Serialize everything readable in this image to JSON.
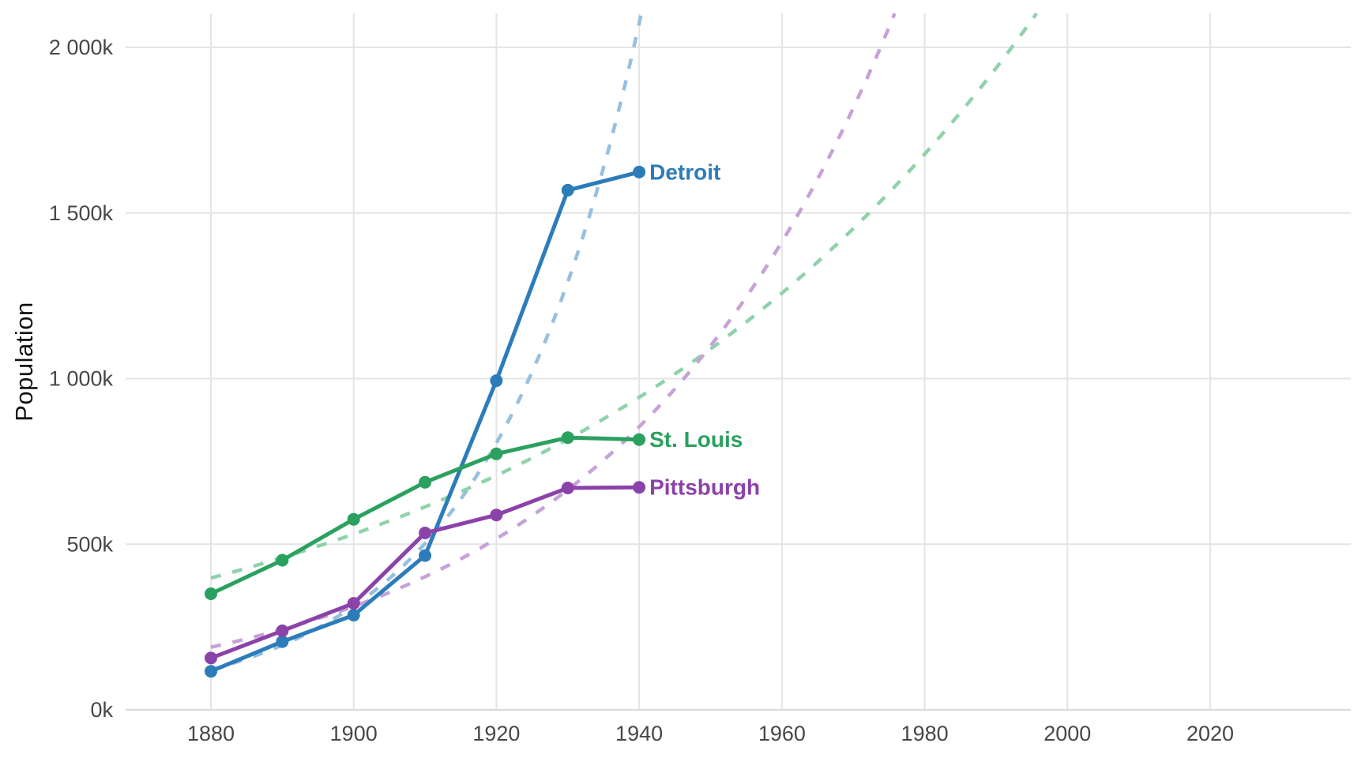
{
  "page": {
    "background": "#ffffff"
  },
  "axis": {
    "y_title": "Population"
  },
  "chart_data": {
    "type": "line",
    "title": "",
    "xlabel": "",
    "ylabel": "Population",
    "legend_position": "direct labels at the right end of each solid line",
    "grid": "major gridlines only, light gray on white; bottom axis line slightly darker",
    "x_range": [
      1868,
      2040
    ],
    "y_range_k": [
      0,
      2103
    ],
    "x_ticks": [
      {
        "value": 1880,
        "label": "1880"
      },
      {
        "value": 1900,
        "label": "1900"
      },
      {
        "value": 1920,
        "label": "1920"
      },
      {
        "value": 1940,
        "label": "1940"
      },
      {
        "value": 1960,
        "label": "1960"
      },
      {
        "value": 1980,
        "label": "1980"
      },
      {
        "value": 2000,
        "label": "2000"
      },
      {
        "value": 2020,
        "label": "2020"
      }
    ],
    "y_ticks": [
      {
        "value_k": 0,
        "label": "0k"
      },
      {
        "value_k": 500,
        "label": "500k"
      },
      {
        "value_k": 1000,
        "label": "1 000k"
      },
      {
        "value_k": 1500,
        "label": "1 500k"
      },
      {
        "value_k": 2000,
        "label": "2 000k"
      }
    ],
    "years": [
      1880,
      1890,
      1900,
      1910,
      1920,
      1930,
      1940
    ],
    "series": [
      {
        "name": "Detroit",
        "color": "#2d7cba",
        "projection_color": "#96c0df",
        "values_k": [
          116.3,
          205.9,
          285.7,
          465.8,
          993.7,
          1568.7,
          1623.5
        ],
        "projection": {
          "style": "dashed",
          "description": "exponential (log-linear) fit to 1880-1940 points, extrapolated until it exits the top of the panel (~1940)",
          "ln_k_at_1910": 6.219,
          "ln_slope_per_decade": 0.4725
        }
      },
      {
        "name": "St. Louis",
        "color": "#2aa15e",
        "projection_color": "#8fd2ab",
        "values_k": [
          350.5,
          451.8,
          575.2,
          687.0,
          772.9,
          822.0,
          816.0
        ],
        "projection": {
          "style": "dashed",
          "description": "exponential (log-linear) fit to 1880-1940 points, extrapolated until it exits the top of the panel (~1995)",
          "ln_k_at_1910": 6.418,
          "ln_slope_per_decade": 0.1439
        }
      },
      {
        "name": "Pittsburgh",
        "color": "#8b42a9",
        "projection_color": "#c7a2d8",
        "values_k": [
          156.4,
          238.6,
          321.6,
          533.9,
          588.3,
          669.8,
          671.7
        ],
        "projection": {
          "style": "dashed",
          "description": "exponential (log-linear) fit to 1880-1940 points, extrapolated until it exits the top of the panel (~1975)",
          "ln_k_at_1910": 5.996,
          "ln_slope_per_decade": 0.2515
        }
      }
    ],
    "colors": {
      "gridline": "#e4e4e4",
      "axis_line": "#d8d8d8",
      "tick_text": "#474747",
      "axis_title_text": "#111111"
    }
  }
}
